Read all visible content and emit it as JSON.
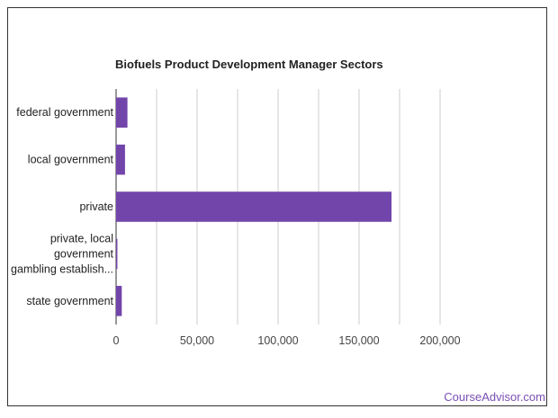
{
  "brand": {
    "text": "CourseAdvisor.com",
    "color": "#7a4fb5"
  },
  "chart_data": {
    "type": "bar",
    "orientation": "horizontal",
    "title": "Biofuels Product Development Manager Sectors",
    "xlabel": "",
    "ylabel": "",
    "categories": [
      "federal government",
      "local government",
      "private",
      "private, local government gambling establish...",
      "state government"
    ],
    "category_lines": [
      [
        "federal government"
      ],
      [
        "local government"
      ],
      [
        "private"
      ],
      [
        "private, local",
        "government",
        "gambling establish..."
      ],
      [
        "state government"
      ]
    ],
    "values": [
      7000,
      5500,
      170000,
      800,
      3500
    ],
    "xlim": [
      0,
      225000
    ],
    "ticks": [
      0,
      50000,
      100000,
      150000,
      200000
    ],
    "tick_labels": [
      "0",
      "50,000",
      "100,000",
      "150,000",
      "200,000"
    ],
    "grid": true,
    "legend": "none",
    "bar_color": "#7245ab",
    "grid_color": "#cccccc"
  }
}
